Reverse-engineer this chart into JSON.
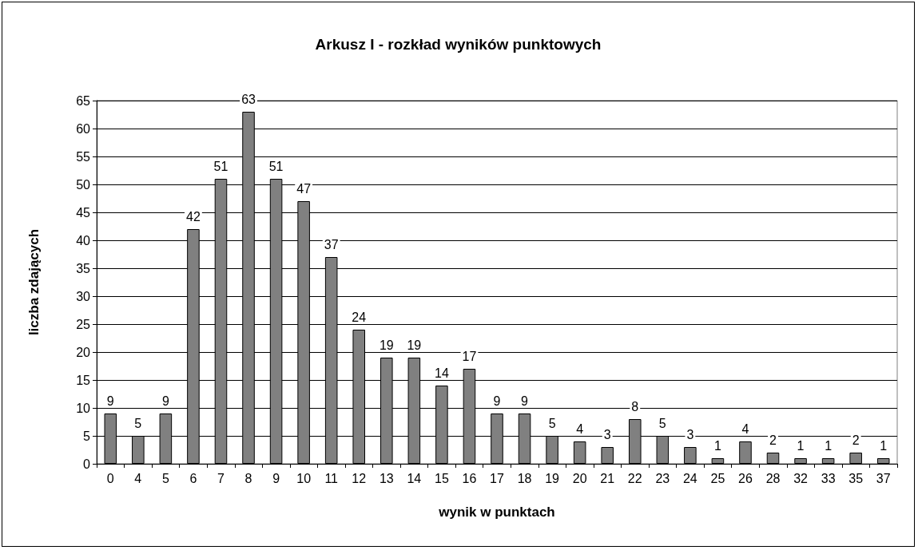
{
  "chart_data": {
    "type": "bar",
    "title": "Arkusz I - rozkład wyników punktowych",
    "xlabel": "wynik w punktach",
    "ylabel": "liczba zdających",
    "categories": [
      "0",
      "4",
      "5",
      "6",
      "7",
      "8",
      "9",
      "10",
      "11",
      "12",
      "13",
      "14",
      "15",
      "16",
      "17",
      "18",
      "19",
      "20",
      "21",
      "22",
      "23",
      "24",
      "25",
      "26",
      "28",
      "32",
      "33",
      "35",
      "37"
    ],
    "values": [
      9,
      5,
      9,
      42,
      51,
      63,
      51,
      47,
      37,
      24,
      19,
      19,
      14,
      17,
      9,
      9,
      5,
      4,
      3,
      8,
      5,
      3,
      1,
      4,
      2,
      1,
      1,
      2,
      1
    ],
    "color": "#808080",
    "ylim": [
      0,
      65
    ],
    "yticks": [
      0,
      5,
      10,
      15,
      20,
      25,
      30,
      35,
      40,
      45,
      50,
      55,
      60,
      65
    ],
    "grid": "y",
    "data_labels": true
  }
}
